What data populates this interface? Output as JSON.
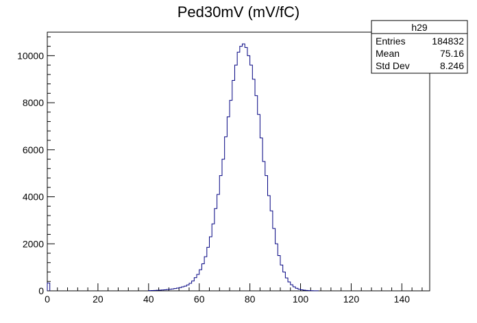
{
  "chart_data": {
    "type": "histogram",
    "title": "Ped30mV (mV/fC)",
    "xlabel": "",
    "ylabel": "",
    "xlim": [
      0,
      151
    ],
    "ylim": [
      0,
      11000
    ],
    "bin_width": 1,
    "x_ticks": [
      0,
      20,
      40,
      60,
      80,
      100,
      120,
      140
    ],
    "y_ticks": [
      0,
      2000,
      4000,
      6000,
      8000,
      10000
    ],
    "line_color": "#000080",
    "grid": false,
    "legend": "none",
    "bins": [
      {
        "x": 0,
        "y": 330
      },
      {
        "x": 40,
        "y": 10
      },
      {
        "x": 41,
        "y": 15
      },
      {
        "x": 42,
        "y": 20
      },
      {
        "x": 43,
        "y": 25
      },
      {
        "x": 44,
        "y": 30
      },
      {
        "x": 45,
        "y": 35
      },
      {
        "x": 46,
        "y": 45
      },
      {
        "x": 47,
        "y": 55
      },
      {
        "x": 48,
        "y": 65
      },
      {
        "x": 49,
        "y": 80
      },
      {
        "x": 50,
        "y": 100
      },
      {
        "x": 51,
        "y": 115
      },
      {
        "x": 52,
        "y": 140
      },
      {
        "x": 53,
        "y": 170
      },
      {
        "x": 54,
        "y": 200
      },
      {
        "x": 55,
        "y": 250
      },
      {
        "x": 56,
        "y": 320
      },
      {
        "x": 57,
        "y": 420
      },
      {
        "x": 58,
        "y": 560
      },
      {
        "x": 59,
        "y": 700
      },
      {
        "x": 60,
        "y": 900
      },
      {
        "x": 61,
        "y": 1150
      },
      {
        "x": 62,
        "y": 1450
      },
      {
        "x": 63,
        "y": 1850
      },
      {
        "x": 64,
        "y": 2300
      },
      {
        "x": 65,
        "y": 2850
      },
      {
        "x": 66,
        "y": 3500
      },
      {
        "x": 67,
        "y": 4100
      },
      {
        "x": 68,
        "y": 4900
      },
      {
        "x": 69,
        "y": 5600
      },
      {
        "x": 70,
        "y": 6550
      },
      {
        "x": 71,
        "y": 7400
      },
      {
        "x": 72,
        "y": 8100
      },
      {
        "x": 73,
        "y": 8950
      },
      {
        "x": 74,
        "y": 9600
      },
      {
        "x": 75,
        "y": 10150
      },
      {
        "x": 76,
        "y": 10400
      },
      {
        "x": 77,
        "y": 10500
      },
      {
        "x": 78,
        "y": 10350
      },
      {
        "x": 79,
        "y": 10000
      },
      {
        "x": 80,
        "y": 9600
      },
      {
        "x": 81,
        "y": 9000
      },
      {
        "x": 82,
        "y": 8300
      },
      {
        "x": 83,
        "y": 7500
      },
      {
        "x": 84,
        "y": 6500
      },
      {
        "x": 85,
        "y": 5500
      },
      {
        "x": 86,
        "y": 4900
      },
      {
        "x": 87,
        "y": 4050
      },
      {
        "x": 88,
        "y": 3400
      },
      {
        "x": 89,
        "y": 2650
      },
      {
        "x": 90,
        "y": 2000
      },
      {
        "x": 91,
        "y": 1500
      },
      {
        "x": 92,
        "y": 1100
      },
      {
        "x": 93,
        "y": 800
      },
      {
        "x": 94,
        "y": 550
      },
      {
        "x": 95,
        "y": 380
      },
      {
        "x": 96,
        "y": 260
      },
      {
        "x": 97,
        "y": 170
      },
      {
        "x": 98,
        "y": 110
      },
      {
        "x": 99,
        "y": 70
      },
      {
        "x": 100,
        "y": 45
      },
      {
        "x": 101,
        "y": 30
      },
      {
        "x": 102,
        "y": 20
      },
      {
        "x": 103,
        "y": 12
      },
      {
        "x": 104,
        "y": 8
      },
      {
        "x": 105,
        "y": 5
      },
      {
        "x": 106,
        "y": 3
      }
    ],
    "stats_box": {
      "name": "h29",
      "rows": [
        {
          "label": "Entries",
          "value": "184832"
        },
        {
          "label": "Mean",
          "value": "75.16"
        },
        {
          "label": "Std Dev",
          "value": "8.246"
        }
      ]
    }
  }
}
